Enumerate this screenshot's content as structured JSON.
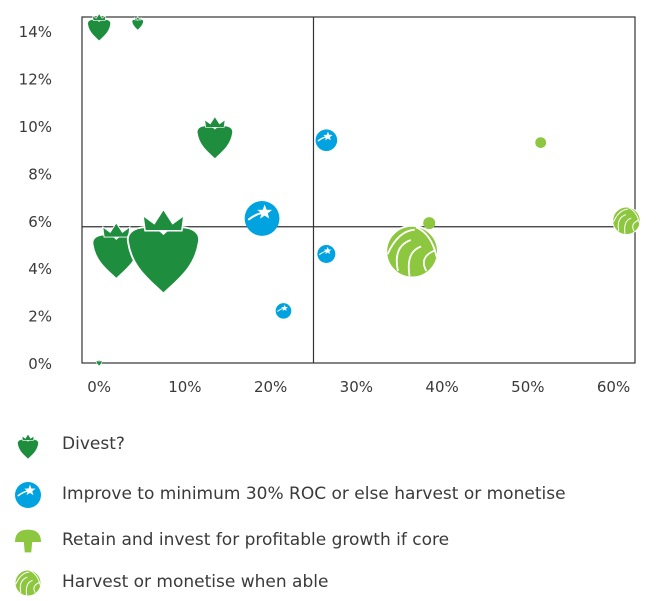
{
  "chart_data": {
    "type": "scatter",
    "title": "",
    "xlabel": "",
    "ylabel": "",
    "xlim": [
      -2,
      62.5
    ],
    "ylim": [
      0,
      14.6
    ],
    "x_ticks": [
      "0%",
      "10%",
      "20%",
      "30%",
      "40%",
      "50%",
      "60%"
    ],
    "x_tick_values": [
      0,
      10,
      20,
      30,
      40,
      50,
      60
    ],
    "y_ticks": [
      "0%",
      "2%",
      "4%",
      "6%",
      "8%",
      "10%",
      "12%",
      "14%"
    ],
    "y_tick_values": [
      0,
      2,
      4,
      6,
      8,
      10,
      12,
      14
    ],
    "reference_lines": {
      "x": 25,
      "y": 5.75
    },
    "grid": false,
    "colors": {
      "divest": "#1e8e3e",
      "improve": "#00a3e0",
      "retain": "#8dc63f",
      "harvest": "#8dc63f",
      "axis": "#333333"
    },
    "series": [
      {
        "category": "divest",
        "icon": "radish-icon",
        "points": [
          {
            "x": 0,
            "y": 14.1,
            "size": 1.0
          },
          {
            "x": 4.5,
            "y": 14.3,
            "size": 0.5
          },
          {
            "x": 13.5,
            "y": 9.4,
            "size": 1.55
          },
          {
            "x": 2,
            "y": 4.6,
            "size": 2.05
          },
          {
            "x": 7.5,
            "y": 4.5,
            "size": 3.1
          },
          {
            "x": 0,
            "y": 0,
            "size": 0.25
          }
        ]
      },
      {
        "category": "improve",
        "icon": "star-ball-icon",
        "points": [
          {
            "x": 26.5,
            "y": 9.4,
            "size": 0.9
          },
          {
            "x": 19,
            "y": 6.1,
            "size": 1.45
          },
          {
            "x": 26.5,
            "y": 4.6,
            "size": 0.75
          },
          {
            "x": 21.5,
            "y": 2.2,
            "size": 0.65
          }
        ]
      },
      {
        "category": "retain",
        "icon": "dot-icon",
        "points": [
          {
            "x": 51.5,
            "y": 9.3,
            "size": 0.45
          },
          {
            "x": 38.5,
            "y": 5.9,
            "size": 0.5
          }
        ]
      },
      {
        "category": "harvest",
        "icon": "cabbage-icon",
        "points": [
          {
            "x": 36.5,
            "y": 4.7,
            "size": 2.15
          },
          {
            "x": 61.5,
            "y": 6.0,
            "size": 1.15
          }
        ]
      }
    ]
  },
  "legend": [
    {
      "category": "divest",
      "icon": "radish-icon",
      "label": "Divest?"
    },
    {
      "category": "improve",
      "icon": "star-ball-icon",
      "label": "Improve to minimum 30% ROC or else harvest or monetise"
    },
    {
      "category": "retain",
      "icon": "mushroom-icon",
      "label": "Retain and invest for profitable growth if core"
    },
    {
      "category": "harvest",
      "icon": "cabbage-icon",
      "label": "Harvest or monetise when able"
    }
  ]
}
